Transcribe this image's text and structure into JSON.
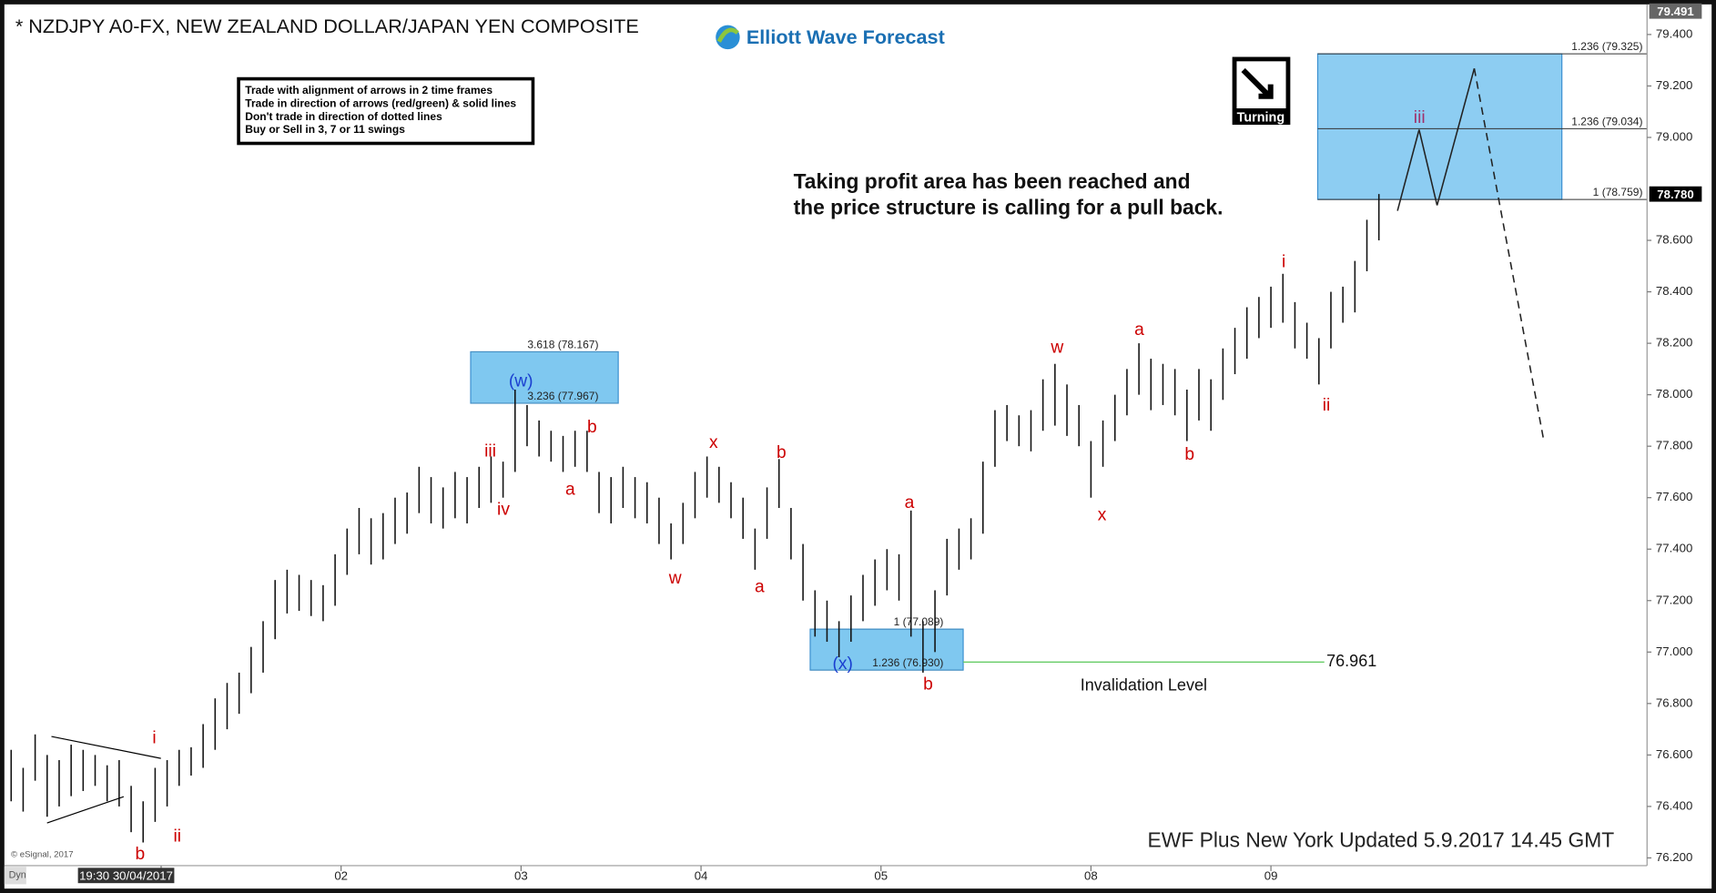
{
  "chart_data": {
    "type": "ohlc",
    "title": "* NZDJPY A0-FX, NEW ZEALAND DOLLAR/JAPAN YEN COMPOSITE",
    "logo": "Elliott Wave Forecast",
    "badge": "Turning",
    "rules": [
      "Trade with alignment of arrows in 2 time frames",
      "Trade in direction of arrows (red/green) & solid lines",
      "Don't trade in direction of dotted lines",
      "Buy or Sell in 3, 7 or 11 swings"
    ],
    "annotation": [
      "Taking profit area has been reached and",
      "the price structure is calling for a pull back."
    ],
    "footer": "EWF Plus New York Updated 5.9.2017 14.45 GMT",
    "credit": "© eSignal, 2017",
    "corner": "Dyn",
    "color": "#111111",
    "x": [
      0,
      2,
      4,
      6,
      8,
      10,
      12,
      14,
      16,
      18,
      20,
      22,
      24,
      26,
      28,
      30,
      32,
      34,
      36,
      38,
      40,
      42,
      44,
      46,
      48,
      50,
      52,
      54,
      56,
      58,
      60,
      62,
      64,
      66,
      68,
      70,
      72,
      74,
      76,
      78,
      80,
      82,
      84,
      86,
      88,
      90,
      92,
      94,
      96,
      98,
      100,
      102,
      104,
      106,
      108,
      110,
      112,
      114,
      116,
      118,
      120,
      122,
      124,
      126,
      128,
      130,
      132,
      134,
      136,
      138,
      140,
      142,
      144,
      146,
      148,
      150,
      152,
      154,
      156,
      158,
      160,
      162,
      164,
      166,
      168,
      170,
      172,
      174,
      176,
      178,
      180,
      182,
      184,
      186,
      188,
      190,
      192,
      194,
      196,
      198,
      200,
      202,
      204,
      206,
      208,
      210,
      212,
      214,
      216,
      218,
      220,
      222,
      224,
      226,
      228
    ],
    "high": [
      76.62,
      76.55,
      76.68,
      76.6,
      76.58,
      76.64,
      76.62,
      76.6,
      76.56,
      76.58,
      76.48,
      76.42,
      76.55,
      76.58,
      76.62,
      76.63,
      76.72,
      76.82,
      76.88,
      76.92,
      77.02,
      77.12,
      77.28,
      77.32,
      77.3,
      77.28,
      77.26,
      77.38,
      77.48,
      77.56,
      77.52,
      77.54,
      77.6,
      77.62,
      77.72,
      77.68,
      77.64,
      77.7,
      77.68,
      77.72,
      77.76,
      77.74,
      78.02,
      77.96,
      77.9,
      77.86,
      77.84,
      77.86,
      77.86,
      77.7,
      77.68,
      77.72,
      77.68,
      77.66,
      77.6,
      77.5,
      77.58,
      77.7,
      77.76,
      77.72,
      77.66,
      77.6,
      77.48,
      77.64,
      77.75,
      77.56,
      77.42,
      77.24,
      77.2,
      77.12,
      77.22,
      77.3,
      77.36,
      77.4,
      77.38,
      77.55,
      77.12,
      77.24,
      77.44,
      77.48,
      77.52,
      77.74,
      77.94,
      77.96,
      77.92,
      77.94,
      78.06,
      78.12,
      78.04,
      77.96,
      77.82,
      77.9,
      78.0,
      78.1,
      78.2,
      78.14,
      78.12,
      78.1,
      78.02,
      78.1,
      78.06,
      78.18,
      78.26,
      78.34,
      78.38,
      78.42,
      78.47,
      78.36,
      78.28,
      78.22,
      78.4,
      78.42,
      78.52,
      78.68,
      78.78
    ],
    "low": [
      76.42,
      76.38,
      76.5,
      76.36,
      76.4,
      76.44,
      76.46,
      76.48,
      76.42,
      76.4,
      76.3,
      76.26,
      76.34,
      76.4,
      76.48,
      76.52,
      76.55,
      76.62,
      76.7,
      76.76,
      76.84,
      76.92,
      77.05,
      77.15,
      77.16,
      77.14,
      77.12,
      77.18,
      77.3,
      77.38,
      77.34,
      77.36,
      77.42,
      77.46,
      77.54,
      77.5,
      77.48,
      77.52,
      77.5,
      77.56,
      77.58,
      77.6,
      77.7,
      77.8,
      77.76,
      77.74,
      77.7,
      77.72,
      77.7,
      77.54,
      77.5,
      77.56,
      77.52,
      77.5,
      77.42,
      77.36,
      77.42,
      77.52,
      77.6,
      77.58,
      77.52,
      77.44,
      77.32,
      77.44,
      77.56,
      77.36,
      77.2,
      77.06,
      77.04,
      76.98,
      77.04,
      77.12,
      77.18,
      77.24,
      77.2,
      77.06,
      76.92,
      77.0,
      77.22,
      77.32,
      77.36,
      77.46,
      77.72,
      77.82,
      77.8,
      77.78,
      77.86,
      77.88,
      77.84,
      77.8,
      77.6,
      77.72,
      77.82,
      77.92,
      78.0,
      77.94,
      77.96,
      77.92,
      77.82,
      77.9,
      77.86,
      77.98,
      78.08,
      78.14,
      78.22,
      78.26,
      78.28,
      78.18,
      78.14,
      78.04,
      78.18,
      78.28,
      78.32,
      78.48,
      78.6
    ],
    "xlim": [
      -0.4,
      272.7
    ],
    "ylim": [
      76.17,
      79.5
    ],
    "xticks": [
      {
        "value": 25,
        "label": "19:30 30/04/2017"
      },
      {
        "value": 55,
        "label": "02"
      },
      {
        "value": 85,
        "label": "03"
      },
      {
        "value": 115,
        "label": "04"
      },
      {
        "value": 145,
        "label": "05"
      },
      {
        "value": 180,
        "label": "08"
      },
      {
        "value": 210,
        "label": "09"
      }
    ],
    "yticks": [
      {
        "value": 76.2,
        "label": "76.200"
      },
      {
        "value": 76.4,
        "label": "76.400"
      },
      {
        "value": 76.6,
        "label": "76.600"
      },
      {
        "value": 76.8,
        "label": "76.800"
      },
      {
        "value": 77,
        "label": "77.000"
      },
      {
        "value": 77.2,
        "label": "77.200"
      },
      {
        "value": 77.4,
        "label": "77.400"
      },
      {
        "value": 77.6,
        "label": "77.600"
      },
      {
        "value": 77.8,
        "label": "77.800"
      },
      {
        "value": 78,
        "label": "78.000"
      },
      {
        "value": 78.2,
        "label": "78.200"
      },
      {
        "value": 78.4,
        "label": "78.400"
      },
      {
        "value": 78.6,
        "label": "78.600"
      },
      {
        "value": 79,
        "label": "79.000"
      },
      {
        "value": 79.2,
        "label": "79.200"
      },
      {
        "value": 79.4,
        "label": "79.400"
      }
    ],
    "last_price": {
      "value": 78.78,
      "label": "78.780"
    },
    "top_price": {
      "value": 79.491,
      "label": "79.491"
    },
    "zones": [
      {
        "x": [
          76.6,
          101.2
        ],
        "color": "#7fc8f0",
        "levels": [
          {
            "value": 78.167,
            "label": "3.618 (78.167)"
          },
          {
            "value": 77.967,
            "label": "3.236 (77.967)"
          }
        ]
      },
      {
        "x": [
          133.2,
          158.7
        ],
        "color": "#7fc8f0",
        "levels": [
          {
            "value": 77.089,
            "label": "1 (77.089)"
          },
          {
            "value": 76.93,
            "label": "1.236 (76.930)"
          }
        ]
      },
      {
        "x": [
          217.8,
          258.5
        ],
        "color": "#8dcdf2",
        "levels": [
          {
            "value": 79.325,
            "label": "1.236 (79.325)"
          },
          {
            "value": 79.034,
            "label": "1.236 (79.034)"
          },
          {
            "value": 78.759,
            "label": "1 (78.759)"
          }
        ]
      }
    ],
    "invalidation": {
      "value": 76.961,
      "label": "76.961",
      "text": "Invalidation Level",
      "color": "#66cc66",
      "x": [
        158.7,
        218.9
      ]
    },
    "projection": {
      "x": [
        231.1,
        234.7,
        237.7,
        243.9,
        255.5
      ],
      "y": [
        78.715,
        79.03,
        78.736,
        79.268,
        77.82
      ],
      "style": [
        "solid",
        "solid",
        "solid",
        "dashed"
      ]
    },
    "wave_labels": [
      {
        "text": "i",
        "color": "#cc0000"
      },
      {
        "text": "ii",
        "color": "#cc0000"
      },
      {
        "text": "b",
        "color": "#cc0000"
      },
      {
        "text": "iii",
        "color": "#cc0000"
      },
      {
        "text": "iv",
        "color": "#cc0000"
      },
      {
        "text": "a",
        "color": "#cc0000"
      },
      {
        "text": "b",
        "color": "#cc0000"
      },
      {
        "text": "w",
        "color": "#cc0000"
      },
      {
        "text": "x",
        "color": "#cc0000"
      },
      {
        "text": "b",
        "color": "#cc0000"
      },
      {
        "text": "a",
        "color": "#cc0000"
      },
      {
        "text": "a",
        "color": "#cc0000"
      },
      {
        "text": "b",
        "color": "#cc0000"
      },
      {
        "text": "w",
        "color": "#cc0000"
      },
      {
        "text": "x",
        "color": "#cc0000"
      },
      {
        "text": "a",
        "color": "#cc0000"
      },
      {
        "text": "b",
        "color": "#cc0000"
      },
      {
        "text": "i",
        "color": "#cc0000"
      },
      {
        "text": "ii",
        "color": "#cc0000"
      },
      {
        "text": "iii",
        "color": "#a0306a"
      },
      {
        "text": "(w)",
        "color": "#1a3fd0"
      },
      {
        "text": "(x)",
        "color": "#1a3fd0"
      }
    ]
  }
}
